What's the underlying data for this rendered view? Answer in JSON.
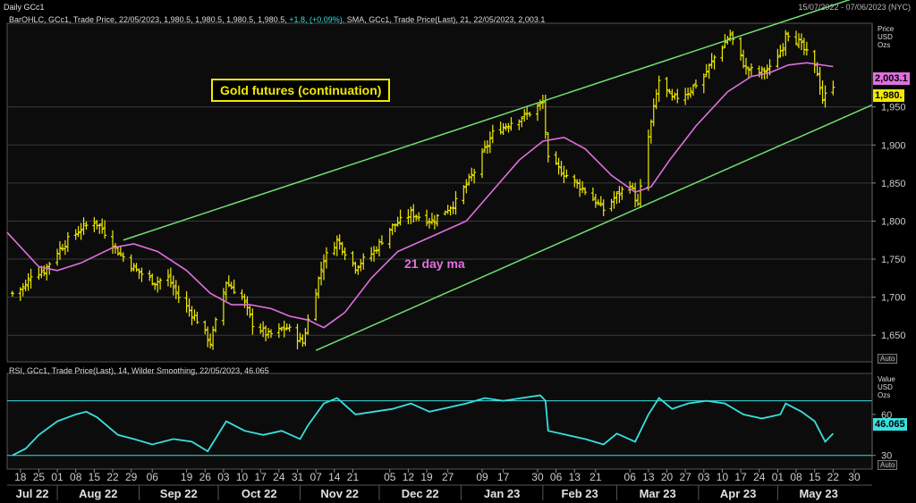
{
  "window": {
    "title": "Daily GCc1",
    "date_range": "15/07/2022 - 07/06/2023 (NYC)"
  },
  "legend_price": {
    "bar": "BarOHLC, GCc1, Trade Price, 22/05/2023, 1,980.5, 1,980.5, 1,980.5, 1,980.5,",
    "change": "+1.8, (+0.09%),",
    "sma": "SMA, GCc1, Trade Price(Last),  21, 22/05/2023, 2,003.1"
  },
  "legend_rsi": "RSI, GCc1, Trade Price(Last),  14, Wilder Smoothing, 22/05/2023, 46.065",
  "annotations": {
    "title": "Gold futures (continuation)",
    "ma_label": "21 day ma"
  },
  "price_axis": {
    "unit_lines": [
      "Price",
      "USD",
      "Ozs"
    ],
    "auto": "Auto",
    "sma_tag": "2,003.1",
    "price_tag": "1,980."
  },
  "rsi_axis": {
    "unit_lines": [
      "Value",
      "USD",
      "Ozs"
    ],
    "auto": "Auto",
    "tag": "46.065"
  },
  "colors": {
    "bars": "#f0ea00",
    "sma": "#e070e0",
    "channel": "#70e070",
    "rsi": "#38e0e0",
    "grid": "#3a3a3a"
  },
  "chart_data": [
    {
      "type": "ohlc_bar",
      "ylim": [
        1615,
        2060
      ],
      "yticks": [
        "1,650",
        "1,700",
        "1,750",
        "1,800",
        "1,850",
        "1,900",
        "1,950"
      ],
      "x_day_labels": [
        "18",
        "25",
        "01",
        "08",
        "15",
        "22",
        "29",
        "06",
        "19",
        "26",
        "03",
        "10",
        "17",
        "24",
        "31",
        "07",
        "14",
        "21",
        "05",
        "12",
        "19",
        "27",
        "09",
        "17",
        "30",
        "06",
        "13",
        "21",
        "06",
        "13",
        "20",
        "27",
        "03",
        "10",
        "17",
        "24",
        "01",
        "08",
        "15",
        "22",
        "30"
      ],
      "x_month_labels": [
        "Jul 22",
        "Aug 22",
        "Sep 22",
        "Oct 22",
        "Nov 22",
        "Dec 22",
        "Jan 23",
        "Feb 23",
        "Mar 23",
        "Apr 23",
        "May 23"
      ],
      "close_points": [
        [
          "2022-07-15",
          1705
        ],
        [
          "2022-07-20",
          1715
        ],
        [
          "2022-07-22",
          1730
        ],
        [
          "2022-07-27",
          1735
        ],
        [
          "2022-08-01",
          1760
        ],
        [
          "2022-08-05",
          1775
        ],
        [
          "2022-08-10",
          1790
        ],
        [
          "2022-08-15",
          1800
        ],
        [
          "2022-08-18",
          1790
        ],
        [
          "2022-08-24",
          1760
        ],
        [
          "2022-08-31",
          1735
        ],
        [
          "2022-09-07",
          1720
        ],
        [
          "2022-09-12",
          1725
        ],
        [
          "2022-09-16",
          1700
        ],
        [
          "2022-09-23",
          1670
        ],
        [
          "2022-09-28",
          1640
        ],
        [
          "2022-10-04",
          1720
        ],
        [
          "2022-10-10",
          1700
        ],
        [
          "2022-10-14",
          1665
        ],
        [
          "2022-10-20",
          1650
        ],
        [
          "2022-10-27",
          1660
        ],
        [
          "2022-11-02",
          1640
        ],
        [
          "2022-11-04",
          1670
        ],
        [
          "2022-11-10",
          1750
        ],
        [
          "2022-11-15",
          1775
        ],
        [
          "2022-11-22",
          1740
        ],
        [
          "2022-11-29",
          1760
        ],
        [
          "2022-12-05",
          1790
        ],
        [
          "2022-12-13",
          1810
        ],
        [
          "2022-12-21",
          1800
        ],
        [
          "2022-12-30",
          1825
        ],
        [
          "2023-01-06",
          1865
        ],
        [
          "2023-01-13",
          1915
        ],
        [
          "2023-01-20",
          1930
        ],
        [
          "2023-01-26",
          1940
        ],
        [
          "2023-02-01",
          1955
        ],
        [
          "2023-02-03",
          1880
        ],
        [
          "2023-02-10",
          1860
        ],
        [
          "2023-02-17",
          1840
        ],
        [
          "2023-02-24",
          1815
        ],
        [
          "2023-02-28",
          1830
        ],
        [
          "2023-03-06",
          1850
        ],
        [
          "2023-03-09",
          1820
        ],
        [
          "2023-03-13",
          1910
        ],
        [
          "2023-03-17",
          1985
        ],
        [
          "2023-03-22",
          1960
        ],
        [
          "2023-03-28",
          1970
        ],
        [
          "2023-04-03",
          1990
        ],
        [
          "2023-04-07",
          2015
        ],
        [
          "2023-04-13",
          2045
        ],
        [
          "2023-04-19",
          2000
        ],
        [
          "2023-04-24",
          1995
        ],
        [
          "2023-04-28",
          2000
        ],
        [
          "2023-05-03",
          2030
        ],
        [
          "2023-05-04",
          2050
        ],
        [
          "2023-05-09",
          2035
        ],
        [
          "2023-05-12",
          2020
        ],
        [
          "2023-05-16",
          1995
        ],
        [
          "2023-05-18",
          1960
        ],
        [
          "2023-05-22",
          1980
        ]
      ],
      "sma21_points": [
        [
          "2022-07-13",
          1785
        ],
        [
          "2022-07-25",
          1740
        ],
        [
          "2022-08-01",
          1735
        ],
        [
          "2022-08-10",
          1745
        ],
        [
          "2022-08-22",
          1765
        ],
        [
          "2022-08-30",
          1770
        ],
        [
          "2022-09-08",
          1760
        ],
        [
          "2022-09-19",
          1735
        ],
        [
          "2022-09-28",
          1705
        ],
        [
          "2022-10-06",
          1690
        ],
        [
          "2022-10-13",
          1690
        ],
        [
          "2022-10-21",
          1685
        ],
        [
          "2022-10-28",
          1675
        ],
        [
          "2022-11-04",
          1670
        ],
        [
          "2022-11-10",
          1660
        ],
        [
          "2022-11-18",
          1680
        ],
        [
          "2022-11-28",
          1725
        ],
        [
          "2022-12-08",
          1760
        ],
        [
          "2022-12-21",
          1780
        ],
        [
          "2023-01-03",
          1800
        ],
        [
          "2023-01-13",
          1840
        ],
        [
          "2023-01-23",
          1880
        ],
        [
          "2023-02-01",
          1905
        ],
        [
          "2023-02-09",
          1910
        ],
        [
          "2023-02-17",
          1895
        ],
        [
          "2023-02-27",
          1860
        ],
        [
          "2023-03-08",
          1838
        ],
        [
          "2023-03-14",
          1845
        ],
        [
          "2023-03-21",
          1880
        ],
        [
          "2023-03-31",
          1925
        ],
        [
          "2023-04-12",
          1970
        ],
        [
          "2023-04-21",
          1990
        ],
        [
          "2023-04-28",
          1995
        ],
        [
          "2023-05-05",
          2005
        ],
        [
          "2023-05-12",
          2008
        ],
        [
          "2023-05-22",
          2003
        ]
      ],
      "channel_upper": [
        [
          "2022-08-26",
          1775
        ],
        [
          "2023-05-10",
          2070
        ]
      ],
      "channel_lower": [
        [
          "2022-11-07",
          1630
        ],
        [
          "2023-05-22",
          1930
        ]
      ]
    },
    {
      "type": "line",
      "name": "RSI 14",
      "ylim": [
        20,
        90
      ],
      "yticks": [
        "30",
        "60"
      ],
      "levels": [
        30,
        70
      ],
      "points": [
        [
          "2022-07-15",
          30
        ],
        [
          "2022-07-20",
          35
        ],
        [
          "2022-07-25",
          45
        ],
        [
          "2022-08-01",
          55
        ],
        [
          "2022-08-08",
          60
        ],
        [
          "2022-08-12",
          62
        ],
        [
          "2022-08-16",
          58
        ],
        [
          "2022-08-24",
          45
        ],
        [
          "2022-08-30",
          42
        ],
        [
          "2022-09-06",
          38
        ],
        [
          "2022-09-14",
          42
        ],
        [
          "2022-09-21",
          40
        ],
        [
          "2022-09-27",
          33
        ],
        [
          "2022-10-04",
          55
        ],
        [
          "2022-10-11",
          48
        ],
        [
          "2022-10-18",
          45
        ],
        [
          "2022-10-25",
          48
        ],
        [
          "2022-11-01",
          42
        ],
        [
          "2022-11-04",
          52
        ],
        [
          "2022-11-10",
          68
        ],
        [
          "2022-11-15",
          72
        ],
        [
          "2022-11-22",
          60
        ],
        [
          "2022-11-29",
          62
        ],
        [
          "2022-12-06",
          64
        ],
        [
          "2022-12-13",
          68
        ],
        [
          "2022-12-20",
          62
        ],
        [
          "2022-12-27",
          65
        ],
        [
          "2023-01-03",
          68
        ],
        [
          "2023-01-10",
          72
        ],
        [
          "2023-01-17",
          70
        ],
        [
          "2023-01-24",
          72
        ],
        [
          "2023-01-31",
          74
        ],
        [
          "2023-02-02",
          70
        ],
        [
          "2023-02-03",
          48
        ],
        [
          "2023-02-10",
          45
        ],
        [
          "2023-02-17",
          42
        ],
        [
          "2023-02-24",
          38
        ],
        [
          "2023-03-01",
          46
        ],
        [
          "2023-03-08",
          40
        ],
        [
          "2023-03-13",
          60
        ],
        [
          "2023-03-17",
          72
        ],
        [
          "2023-03-22",
          64
        ],
        [
          "2023-03-28",
          68
        ],
        [
          "2023-04-04",
          70
        ],
        [
          "2023-04-11",
          68
        ],
        [
          "2023-04-18",
          60
        ],
        [
          "2023-04-25",
          57
        ],
        [
          "2023-05-02",
          60
        ],
        [
          "2023-05-04",
          68
        ],
        [
          "2023-05-10",
          62
        ],
        [
          "2023-05-15",
          55
        ],
        [
          "2023-05-19",
          40
        ],
        [
          "2023-05-22",
          46
        ]
      ]
    }
  ]
}
